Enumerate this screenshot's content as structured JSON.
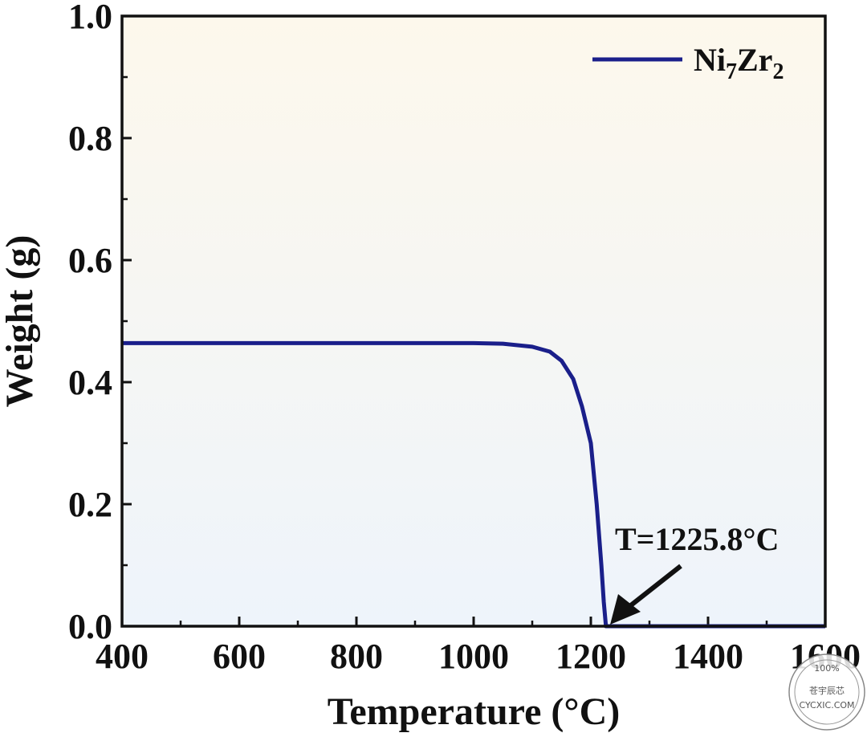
{
  "chart_data": {
    "type": "line",
    "xlabel": "Temperature (°C)",
    "ylabel": "Weight (g)",
    "xlim": [
      400,
      1600
    ],
    "ylim": [
      0,
      1.0
    ],
    "xticks": [
      "400",
      "600",
      "800",
      "1000",
      "1200",
      "1400",
      "1600"
    ],
    "yticks": [
      "0.0",
      "0.2",
      "0.4",
      "0.6",
      "0.8",
      "1.0"
    ],
    "grid": false,
    "legend_position": "top-right",
    "series": [
      {
        "name_main": "Ni",
        "name_sub1": "7",
        "name_mid": "Zr",
        "name_sub2": "2",
        "color": "#1a1f8a",
        "points": [
          [
            400,
            0.464
          ],
          [
            600,
            0.464
          ],
          [
            800,
            0.464
          ],
          [
            1000,
            0.464
          ],
          [
            1050,
            0.463
          ],
          [
            1100,
            0.458
          ],
          [
            1130,
            0.45
          ],
          [
            1150,
            0.435
          ],
          [
            1170,
            0.405
          ],
          [
            1185,
            0.36
          ],
          [
            1200,
            0.3
          ],
          [
            1210,
            0.2
          ],
          [
            1218,
            0.1
          ],
          [
            1222,
            0.04
          ],
          [
            1225.8,
            0.0
          ],
          [
            1300,
            0.0
          ],
          [
            1400,
            0.0
          ],
          [
            1500,
            0.0
          ],
          [
            1600,
            0.0
          ]
        ]
      }
    ],
    "annotation": {
      "text": "T=1225.8°C",
      "x": 1225.8,
      "y": 0.0
    }
  },
  "watermark": {
    "line1": "100%",
    "line2": "苍宇辰芯",
    "line3": "CYCXIC.COM"
  }
}
